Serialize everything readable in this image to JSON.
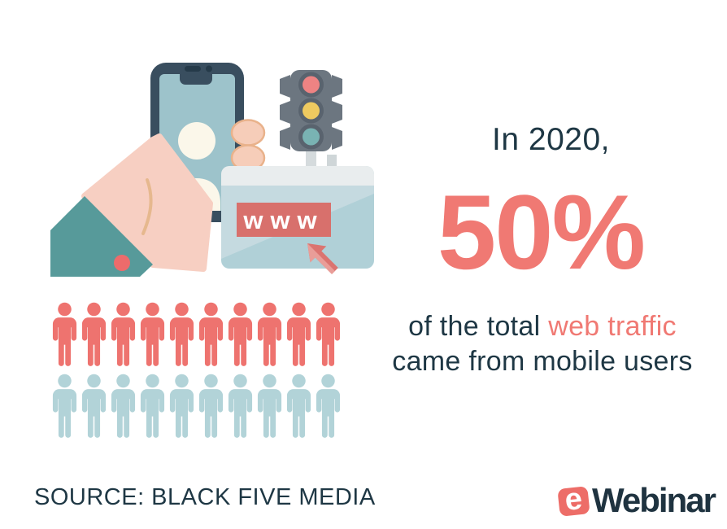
{
  "headline": {
    "intro": "In 2020,",
    "stat": "50%",
    "statement_prefix": "of the total ",
    "statement_highlight": "web traffic",
    "statement_line2": "came from mobile users"
  },
  "source": {
    "label": "SOURCE: BLACK FIVE MEDIA"
  },
  "logo": {
    "badge_letter": "e",
    "wordmark": "Webinar"
  },
  "illustration": {
    "www_label": "www",
    "icons": [
      "hand-holding-phone-icon",
      "smartphone-icon",
      "user-avatar-icon",
      "traffic-light-icon",
      "browser-window-icon",
      "cursor-icon"
    ]
  },
  "colors": {
    "accent": "#f07973",
    "accent_deep": "#ed6d68",
    "ink": "#1e3744",
    "pictogram_highlight": "#ee736f",
    "pictogram_muted": "#b2d3d8",
    "sleeve_teal": "#579a9a",
    "skin_peach": "#f7cfc2",
    "phone_navy": "#394e5f",
    "screen_blue": "#9dc3cb"
  },
  "chart_data": {
    "type": "pictogram",
    "title": "In 2020, 50% of the total web traffic came from mobile users",
    "value_percent": 50,
    "total_icons": 20,
    "highlighted_icons": 10,
    "rows": [
      {
        "name": "mobile-users",
        "count": 10,
        "color": "#ee736f"
      },
      {
        "name": "other-users",
        "count": 10,
        "color": "#b2d3d8"
      }
    ],
    "legend": "none",
    "grid": false,
    "source": "BLACK FIVE MEDIA"
  }
}
